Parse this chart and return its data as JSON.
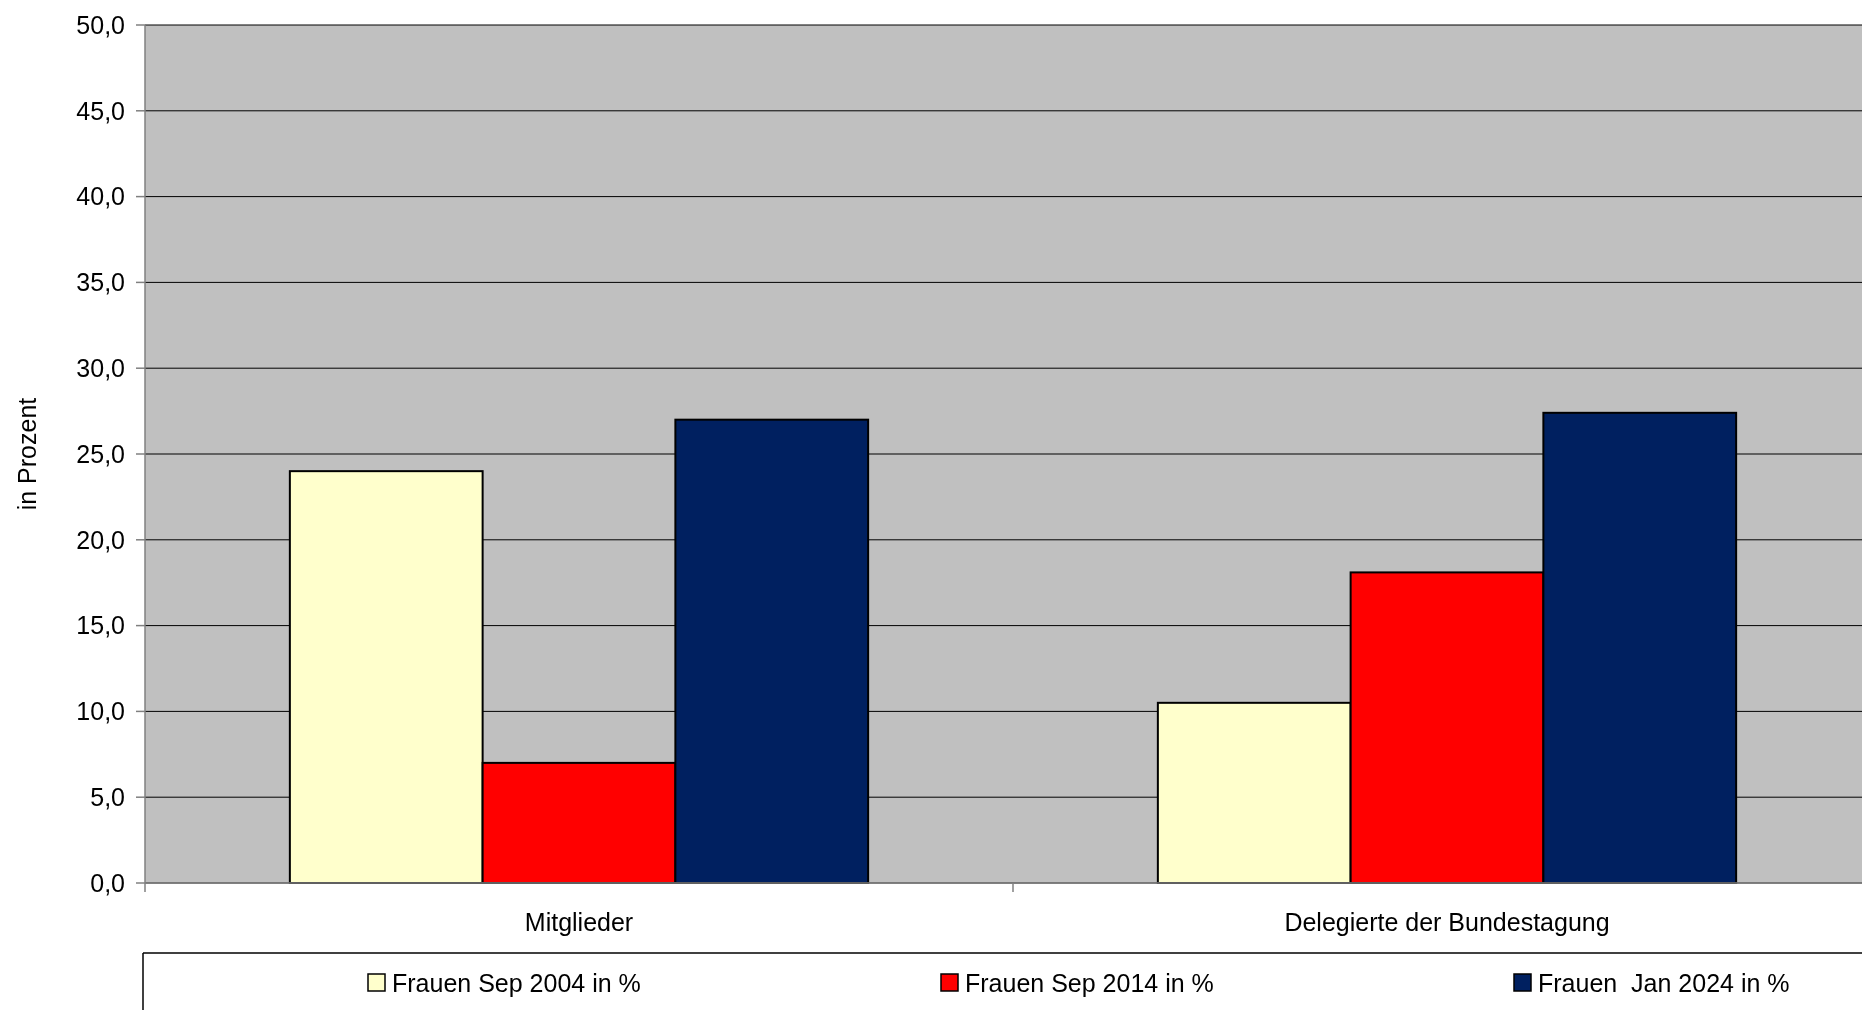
{
  "chart_data": {
    "type": "bar",
    "ylabel": "in Prozent",
    "categories": [
      "Mitglieder",
      "Delegierte der Bundestagung"
    ],
    "series": [
      {
        "name": "Frauen Sep 2004 in %",
        "color": "#ffffcc",
        "values": [
          24.0,
          10.5
        ]
      },
      {
        "name": "Frauen Sep 2014 in %",
        "color": "#ff0000",
        "values": [
          7.0,
          18.1
        ]
      },
      {
        "name": "Frauen  Jan 2024 in %",
        "color": "#002060",
        "values": [
          27.0,
          27.4
        ]
      }
    ],
    "ylim": [
      0,
      50
    ],
    "yticks": [
      {
        "value": 0,
        "label": "0,0"
      },
      {
        "value": 5,
        "label": "5,0"
      },
      {
        "value": 10,
        "label": "10,0"
      },
      {
        "value": 15,
        "label": "15,0"
      },
      {
        "value": 20,
        "label": "20,0"
      },
      {
        "value": 25,
        "label": "25,0"
      },
      {
        "value": 30,
        "label": "30,0"
      },
      {
        "value": 35,
        "label": "35,0"
      },
      {
        "value": 40,
        "label": "40,0"
      },
      {
        "value": 45,
        "label": "45,0"
      },
      {
        "value": 50,
        "label": "50,0"
      }
    ],
    "grid": "y",
    "legend": "bottom"
  }
}
